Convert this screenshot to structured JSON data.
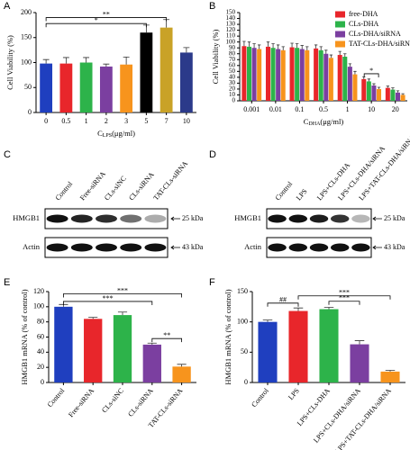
{
  "chart_data": [
    {
      "type": "bar",
      "panel": "A",
      "categories": [
        "0",
        "0.5",
        "1",
        "2",
        "3",
        "5",
        "7",
        "10"
      ],
      "values": [
        98,
        98,
        100,
        92,
        96,
        160,
        170,
        120
      ],
      "errors": [
        8,
        12,
        10,
        5,
        15,
        15,
        16,
        10
      ],
      "colors": [
        "#1f3fbf",
        "#e8262b",
        "#2db34a",
        "#7b3fa0",
        "#f7941d",
        "#000000",
        "#c9a227",
        "#2b3a8a"
      ],
      "y_label": "Cell Viability (%)",
      "x_label": "C",
      "x_label_sub": "LPS",
      "x_label_unit": "(μg/ml)",
      "ylim": [
        0,
        200
      ],
      "yticks": [
        0,
        50,
        100,
        150,
        200
      ],
      "annotations": [
        {
          "text": "**",
          "from": 0,
          "to": 6
        },
        {
          "text": "*",
          "from": 0,
          "to": 5
        }
      ]
    },
    {
      "type": "grouped_bar",
      "panel": "B",
      "categories": [
        "0.001",
        "0.01",
        "0.1",
        "0.5",
        "1",
        "10",
        "20"
      ],
      "series": [
        {
          "name": "free-DHA",
          "color": "#e8262b",
          "values": [
            93,
            92,
            91,
            89,
            78,
            37,
            22
          ],
          "errors": [
            8,
            8,
            7,
            6,
            6,
            4,
            3
          ]
        },
        {
          "name": "CLs-DHA",
          "color": "#2db34a",
          "values": [
            92,
            90,
            90,
            86,
            75,
            33,
            19
          ],
          "errors": [
            8,
            7,
            7,
            6,
            5,
            4,
            3
          ]
        },
        {
          "name": "CLs-DHA/siRNA",
          "color": "#7b3fa0",
          "values": [
            90,
            88,
            88,
            80,
            58,
            26,
            14
          ],
          "errors": [
            7,
            7,
            6,
            6,
            5,
            3,
            3
          ]
        },
        {
          "name": "TAT-CLs-DHA/siRNA",
          "color": "#f7941d",
          "values": [
            88,
            86,
            86,
            73,
            45,
            20,
            10
          ],
          "errors": [
            7,
            6,
            6,
            5,
            5,
            3,
            2
          ]
        }
      ],
      "legend": "upper right",
      "y_label": "Cell Viability (%)",
      "x_label": "C",
      "x_label_sub": "DHA",
      "x_label_unit": "(μg/ml)",
      "ylim": [
        0,
        150
      ],
      "yticks": [
        0,
        10,
        20,
        30,
        40,
        50,
        60,
        70,
        80,
        90,
        100,
        110,
        120,
        130,
        140,
        150
      ],
      "annotations": [
        {
          "text": "*",
          "from": 5,
          "to": 5
        }
      ]
    },
    {
      "type": "bar",
      "panel": "E",
      "categories": [
        "Control",
        "Free-siRNA",
        "CLs-siNC",
        "CLs-siRNA",
        "TAT-CLs-siRNA"
      ],
      "values": [
        100,
        84,
        89,
        50,
        21
      ],
      "errors": [
        3,
        2,
        4,
        2,
        3
      ],
      "colors": [
        "#1f3fbf",
        "#e8262b",
        "#2db34a",
        "#7b3fa0",
        "#f7941d"
      ],
      "y_label": "HMGB1 mRNA (% of control)",
      "ylim": [
        0,
        120
      ],
      "yticks": [
        0,
        20,
        40,
        60,
        80,
        100,
        120
      ],
      "annotations": [
        {
          "text": "***",
          "from": 0,
          "to": 4
        },
        {
          "text": "***",
          "from": 0,
          "to": 3
        },
        {
          "text": "**",
          "from": 3,
          "to": 4
        }
      ]
    },
    {
      "type": "bar",
      "panel": "F",
      "categories": [
        "Control",
        "LPS",
        "LPS+CLs-DHA",
        "LPS+CLs-DHA/siRNA",
        "LPS+TAT-CLs-DHA/siRNA"
      ],
      "values": [
        100,
        118,
        121,
        63,
        18
      ],
      "errors": [
        3,
        5,
        3,
        6,
        2
      ],
      "colors": [
        "#1f3fbf",
        "#e8262b",
        "#2db34a",
        "#7b3fa0",
        "#f7941d"
      ],
      "y_label": "HMGB1 mRNA (% of control)",
      "ylim": [
        0,
        150
      ],
      "yticks": [
        0,
        50,
        100,
        150
      ],
      "annotations": [
        {
          "text": "##",
          "from": 0,
          "to": 1
        },
        {
          "text": "***",
          "from": 2,
          "to": 3
        },
        {
          "text": "***",
          "from": 1,
          "to": 4
        }
      ]
    }
  ],
  "blots": [
    {
      "panel": "C",
      "lanes": [
        "Control",
        "Free-siRNA",
        "CLs-siNC",
        "CLs-siRNA",
        "TAT-CLs-siRNA"
      ],
      "rows": [
        "HMGB1",
        "Actin"
      ],
      "markers": [
        "25 kDa",
        "43 kDa"
      ]
    },
    {
      "panel": "D",
      "lanes": [
        "Control",
        "LPS",
        "LPS+CLs-DHA",
        "LPS+CLs-DHA/siRNA",
        "LPS+TAT-CLs-DHA/siRNA"
      ],
      "rows": [
        "HMGB1",
        "Actin"
      ],
      "markers": [
        "25 kDa",
        "43 kDa"
      ]
    }
  ]
}
